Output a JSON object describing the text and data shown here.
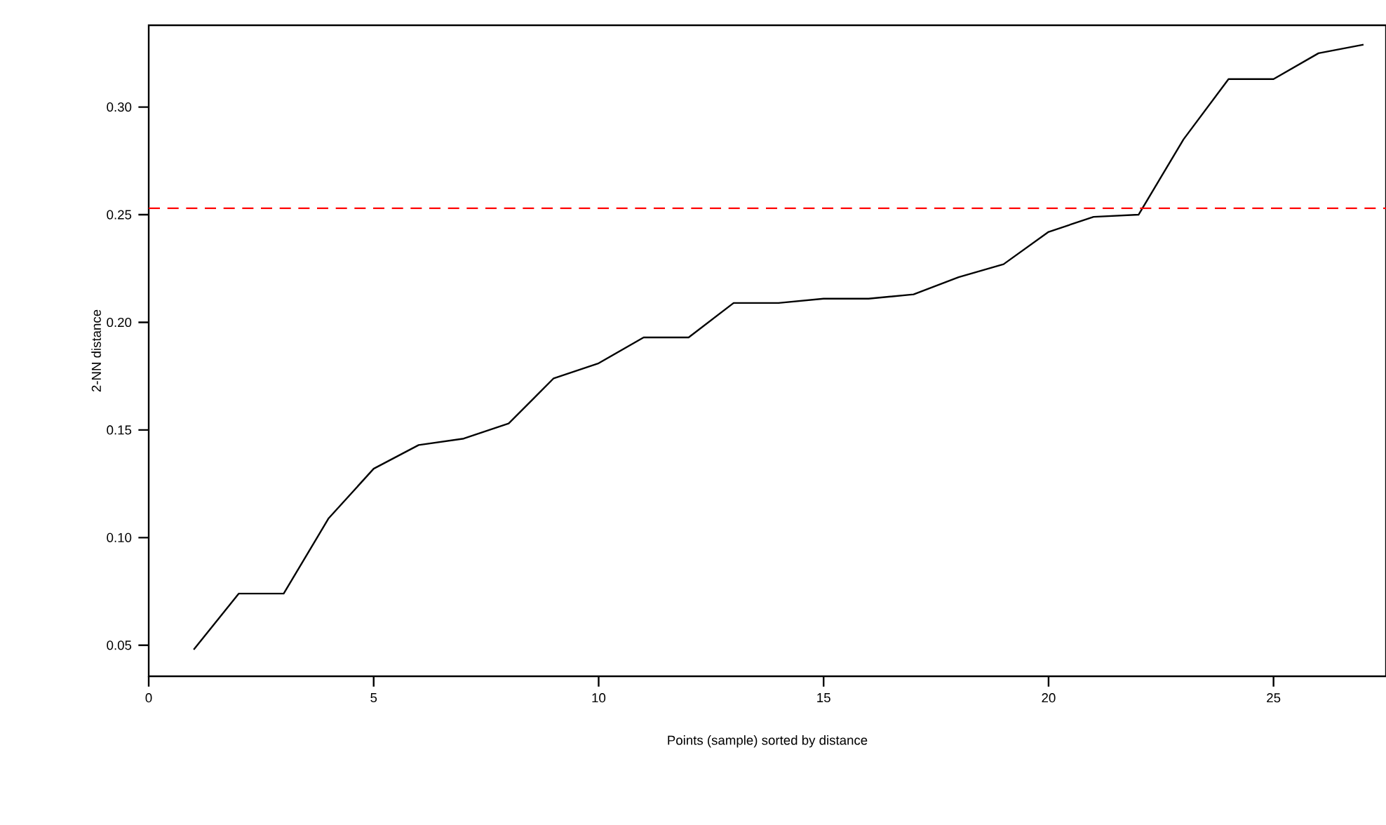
{
  "chart_data": {
    "type": "line",
    "xlabel": "Points (sample) sorted by distance",
    "ylabel": "2-NN distance",
    "x": [
      1,
      2,
      3,
      4,
      5,
      6,
      7,
      8,
      9,
      10,
      11,
      12,
      13,
      14,
      15,
      16,
      17,
      18,
      19,
      20,
      21,
      22,
      23,
      24,
      25,
      26,
      27
    ],
    "series": [
      {
        "color": "#000000",
        "values": [
          0.048,
          0.074,
          0.074,
          0.109,
          0.132,
          0.143,
          0.146,
          0.153,
          0.174,
          0.181,
          0.193,
          0.193,
          0.209,
          0.209,
          0.211,
          0.211,
          0.213,
          0.221,
          0.227,
          0.242,
          0.249,
          0.25,
          0.285,
          0.313,
          0.313,
          0.325,
          0.329
        ]
      }
    ],
    "xlim": [
      0,
      27.5
    ],
    "ylim": [
      0.0356,
      0.338
    ],
    "xticks": [
      0,
      5,
      10,
      15,
      20,
      25
    ],
    "yticks": [
      {
        "value": 0.05,
        "label": "0.05"
      },
      {
        "value": 0.1,
        "label": "0.10"
      },
      {
        "value": 0.15,
        "label": "0.15"
      },
      {
        "value": 0.2,
        "label": "0.20"
      },
      {
        "value": 0.25,
        "label": "0.25"
      },
      {
        "value": 0.3,
        "label": "0.30"
      }
    ],
    "ref_lines": [
      {
        "axis": "y",
        "value": 0.253,
        "color": "#ff0000",
        "line_style": "dashed"
      }
    ],
    "grid": false,
    "legend": false,
    "marker": "none",
    "line_style": "solid"
  }
}
